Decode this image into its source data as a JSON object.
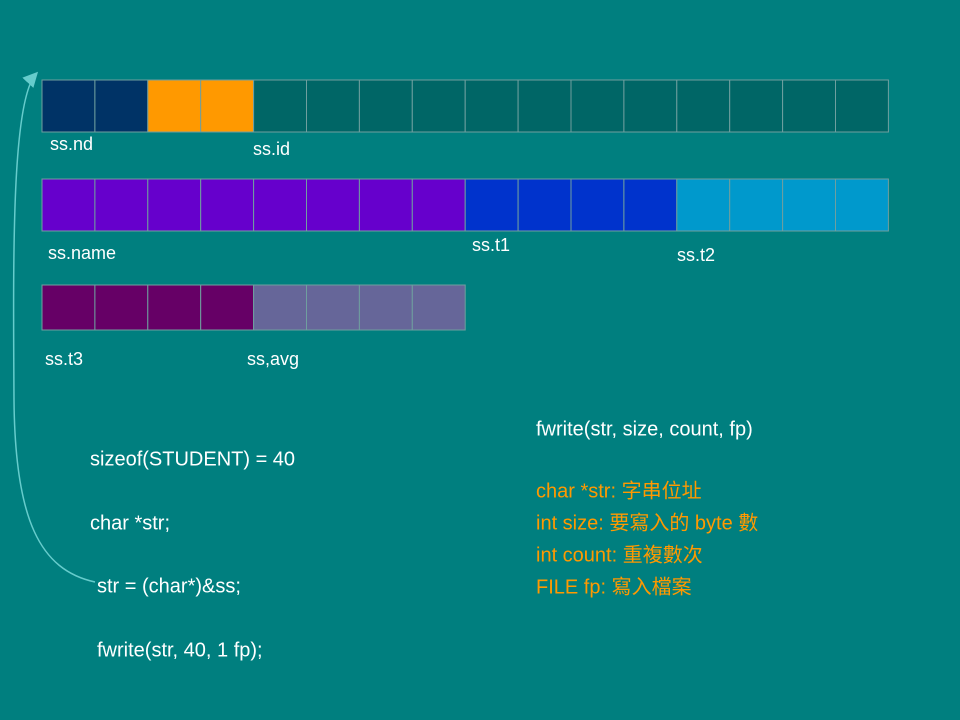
{
  "memory_labels": [
    "ss.nd",
    "ss.id",
    "ss.name",
    "ss.t1",
    "ss.t2",
    "ss.t3",
    "ss,avg"
  ],
  "code": [
    "sizeof(STUDENT) = 40",
    "char *str;",
    "str = (char*)&ss;",
    "fwrite(str, 40, 1 fp);"
  ],
  "signature": "fwrite(str, size, count, fp)",
  "params": [
    "char *str: 字串位址",
    "int size: 要寫入的 byte 數",
    "int count: 重複數次",
    "FILE fp: 寫入檔案"
  ]
}
